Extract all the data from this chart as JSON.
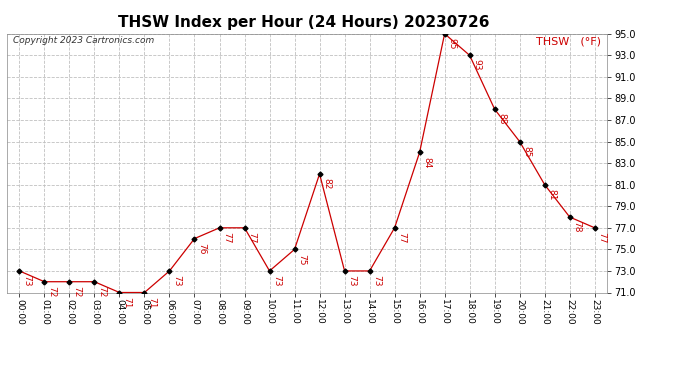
{
  "title": "THSW Index per Hour (24 Hours) 20230726",
  "copyright": "Copyright 2023 Cartronics.com",
  "legend_label": "THSW (°F)",
  "hours": [
    "00:00",
    "01:00",
    "02:00",
    "03:00",
    "04:00",
    "05:00",
    "06:00",
    "07:00",
    "08:00",
    "09:00",
    "10:00",
    "11:00",
    "12:00",
    "13:00",
    "14:00",
    "15:00",
    "16:00",
    "17:00",
    "18:00",
    "19:00",
    "20:00",
    "21:00",
    "22:00",
    "23:00"
  ],
  "values": [
    73,
    72,
    72,
    72,
    71,
    71,
    73,
    76,
    77,
    77,
    73,
    75,
    82,
    73,
    73,
    77,
    84,
    95,
    93,
    88,
    85,
    81,
    78,
    77
  ],
  "line_color": "#cc0000",
  "marker_color": "#000000",
  "annotation_color": "#cc0000",
  "background_color": "#ffffff",
  "grid_color": "#c0c0c0",
  "ylim": [
    71.0,
    95.0
  ],
  "yticks": [
    71.0,
    73.0,
    75.0,
    77.0,
    79.0,
    81.0,
    83.0,
    85.0,
    87.0,
    89.0,
    91.0,
    93.0,
    95.0
  ],
  "title_fontsize": 11,
  "annotation_fontsize": 6.5,
  "copyright_fontsize": 6.5,
  "legend_fontsize": 8,
  "ytick_fontsize": 7,
  "xtick_fontsize": 6.5
}
